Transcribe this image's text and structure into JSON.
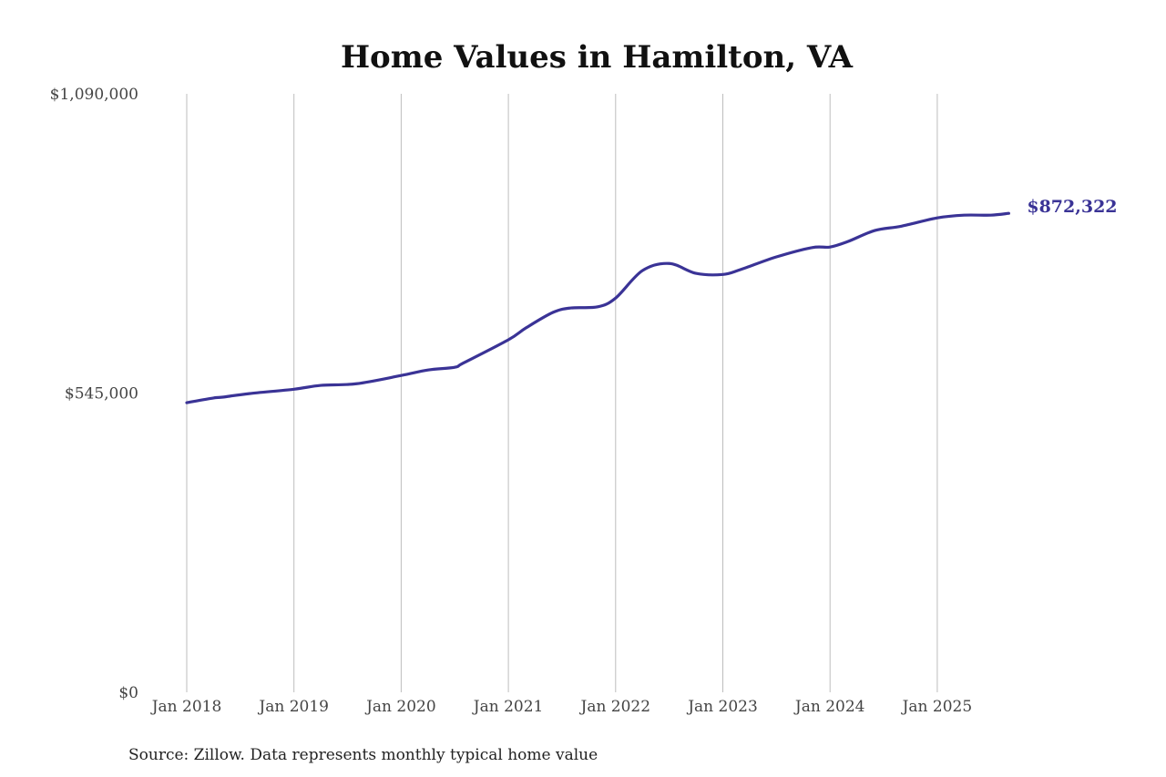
{
  "chart_data": {
    "type": "line",
    "title": "Home Values in Hamilton, VA",
    "source": "Source: Zillow. Data represents monthly typical home value",
    "xlabel": "",
    "ylabel": "",
    "ylim": [
      0,
      1090000
    ],
    "y_ticks": [
      0,
      545000,
      1090000
    ],
    "y_tick_labels": [
      "$0",
      "$545,000",
      "$1,090,000"
    ],
    "x_ticks": [
      "2018-01",
      "2019-01",
      "2020-01",
      "2021-01",
      "2022-01",
      "2023-01",
      "2024-01",
      "2025-01"
    ],
    "x_tick_labels": [
      "Jan 2018",
      "Jan 2019",
      "Jan 2020",
      "Jan 2021",
      "Jan 2022",
      "Jan 2023",
      "Jan 2024",
      "Jan 2025"
    ],
    "grid": "vertical",
    "line_color": "#3a3396",
    "end_label": "$872,322",
    "series": [
      {
        "x": [
          "2018-01",
          "2018-04",
          "2018-05",
          "2018-08",
          "2019-01",
          "2019-04",
          "2019-08",
          "2020-01",
          "2020-04",
          "2020-07",
          "2020-08",
          "2021-01",
          "2021-03",
          "2021-06",
          "2021-08",
          "2021-11",
          "2022-01",
          "2022-04",
          "2022-07",
          "2022-10",
          "2023-01",
          "2023-03",
          "2023-07",
          "2023-11",
          "2024-01",
          "2024-03",
          "2024-06",
          "2024-09",
          "2025-01",
          "2025-04",
          "2025-07",
          "2025-09"
        ],
        "values": [
          527500,
          536000,
          537500,
          544000,
          552000,
          559000,
          562000,
          577000,
          587000,
          592000,
          600000,
          642000,
          664000,
          692000,
          700000,
          702000,
          718000,
          768000,
          781000,
          763000,
          761000,
          770000,
          793000,
          810000,
          811000,
          821000,
          841000,
          849000,
          864000,
          869000,
          869000,
          872322
        ]
      }
    ]
  }
}
